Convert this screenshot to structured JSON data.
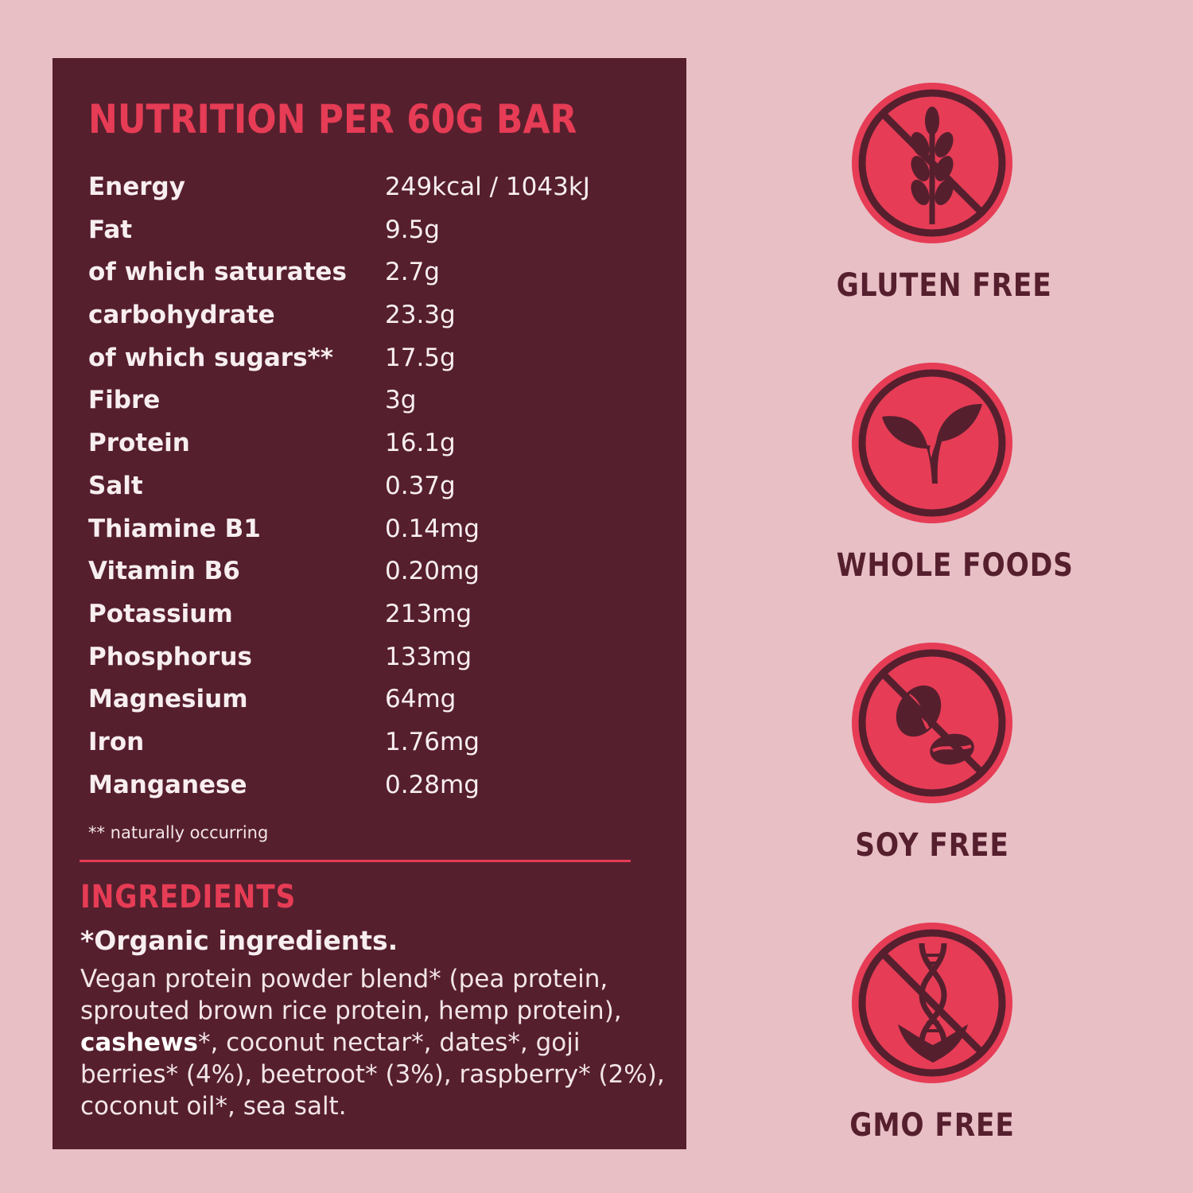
{
  "nutrition": {
    "title": "NUTRITION PER 60G BAR",
    "rows": [
      {
        "name": "Energy",
        "value": "249kcal / 1043kJ"
      },
      {
        "name": "Fat",
        "value": "9.5g"
      },
      {
        "name": "of which saturates",
        "value": "2.7g"
      },
      {
        "name": "carbohydrate",
        "value": "23.3g"
      },
      {
        "name": "of which sugars**",
        "value": "17.5g"
      },
      {
        "name": "Fibre",
        "value": "3g"
      },
      {
        "name": "Protein",
        "value": "16.1g"
      },
      {
        "name": "Salt",
        "value": "0.37g"
      },
      {
        "name": "Thiamine B1",
        "value": "0.14mg"
      },
      {
        "name": "Vitamin B6",
        "value": "0.20mg"
      },
      {
        "name": "Potassium",
        "value": "213mg"
      },
      {
        "name": "Phosphorus",
        "value": "133mg"
      },
      {
        "name": "Magnesium",
        "value": "64mg"
      },
      {
        "name": "Iron",
        "value": "1.76mg"
      },
      {
        "name": "Manganese",
        "value": "0.28mg"
      }
    ],
    "footnote": "** naturally occurring"
  },
  "ingredients": {
    "title": "INGREDIENTS",
    "subtitle": "*Organic ingredients.",
    "text_before": "Vegan protein powder blend* (pea protein, sprouted brown rice protein, hemp protein),",
    "allergen": "cashews",
    "text_after": "*, coconut nectar*, dates*, goji berries* (4%), beetroot* (3%), raspberry* (2%), coconut oil*, sea salt."
  },
  "badges": [
    {
      "label": "GLUTEN FREE",
      "icon": "no-wheat-icon"
    },
    {
      "label": "WHOLE FOODS",
      "icon": "leaf-sprout-icon"
    },
    {
      "label": "SOY FREE",
      "icon": "no-soy-icon"
    },
    {
      "label": "GMO FREE",
      "icon": "no-gmo-icon"
    }
  ],
  "colors": {
    "background": "#e8bfc5",
    "panel": "#561f2e",
    "accent": "#e63c55",
    "text_light": "#f7eef0"
  }
}
